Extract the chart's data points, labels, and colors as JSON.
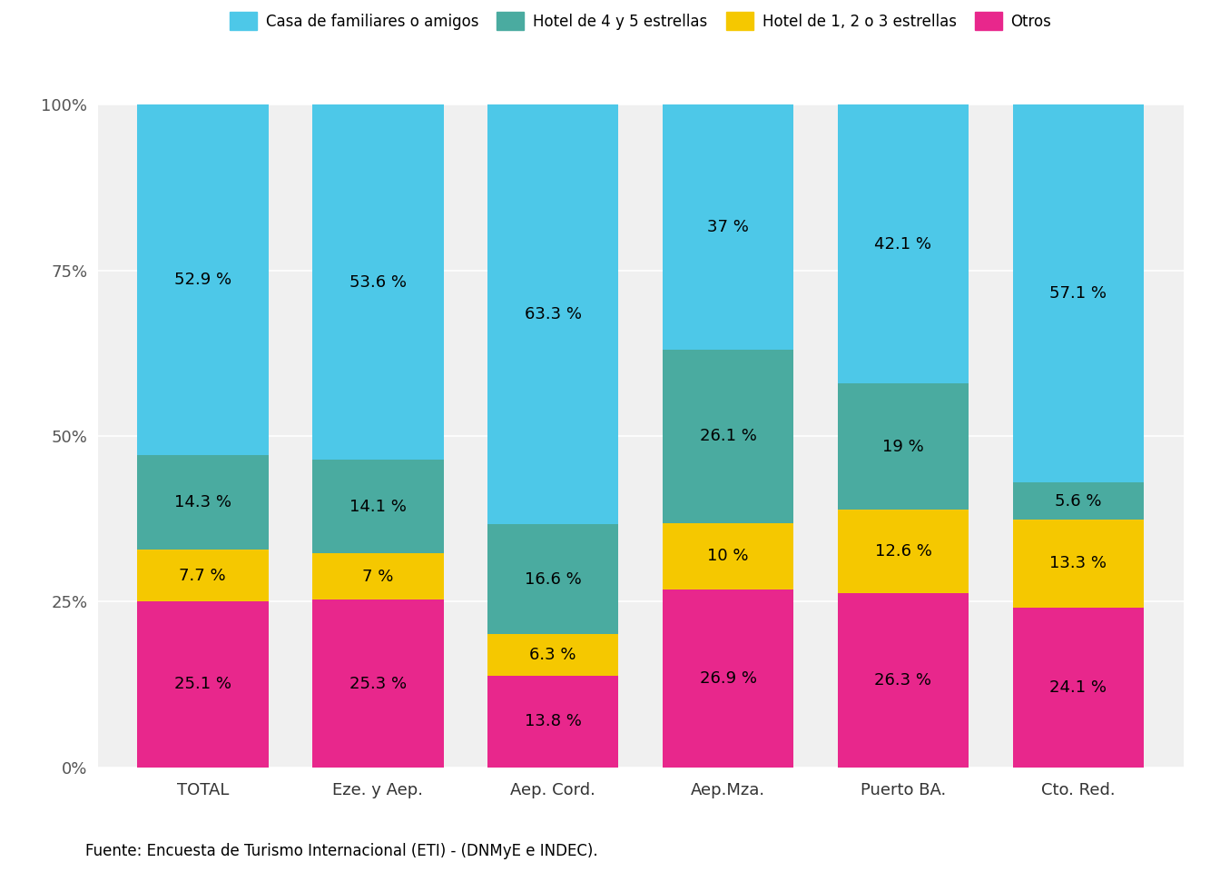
{
  "categories": [
    "TOTAL",
    "Eze. y Aep.",
    "Aep. Cord.",
    "Aep.Mza.",
    "Puerto BA.",
    "Cto. Red."
  ],
  "series": {
    "Otros": [
      25.1,
      25.3,
      13.8,
      26.9,
      26.3,
      24.1
    ],
    "Hotel de 1, 2 o 3 estrellas": [
      7.7,
      7.0,
      6.3,
      10.0,
      12.6,
      13.3
    ],
    "Hotel de 4 y 5 estrellas": [
      14.3,
      14.1,
      16.6,
      26.1,
      19.0,
      5.6
    ],
    "Casa de familiares o amigos": [
      52.9,
      53.6,
      63.3,
      37.0,
      42.1,
      57.1
    ]
  },
  "colors": {
    "Casa de familiares o amigos": "#4DC8E8",
    "Hotel de 4 y 5 estrellas": "#4AABA0",
    "Hotel de 1, 2 o 3 estrellas": "#F5C800",
    "Otros": "#E8278C"
  },
  "legend_order": [
    "Casa de familiares o amigos",
    "Hotel de 4 y 5 estrellas",
    "Hotel de 1, 2 o 3 estrellas",
    "Otros"
  ],
  "yticks": [
    0,
    25,
    50,
    75,
    100
  ],
  "ytick_labels": [
    "0%",
    "25%",
    "50%",
    "75%",
    "100%"
  ],
  "source_text": "Fuente: Encuesta de Turismo Internacional (ETI) - (DNMyE e INDEC).",
  "background_color": "#FFFFFF",
  "plot_bg_color": "#F0F0F0",
  "bar_width": 0.75,
  "label_fontsize": 13,
  "tick_fontsize": 13,
  "legend_fontsize": 12,
  "source_fontsize": 12
}
